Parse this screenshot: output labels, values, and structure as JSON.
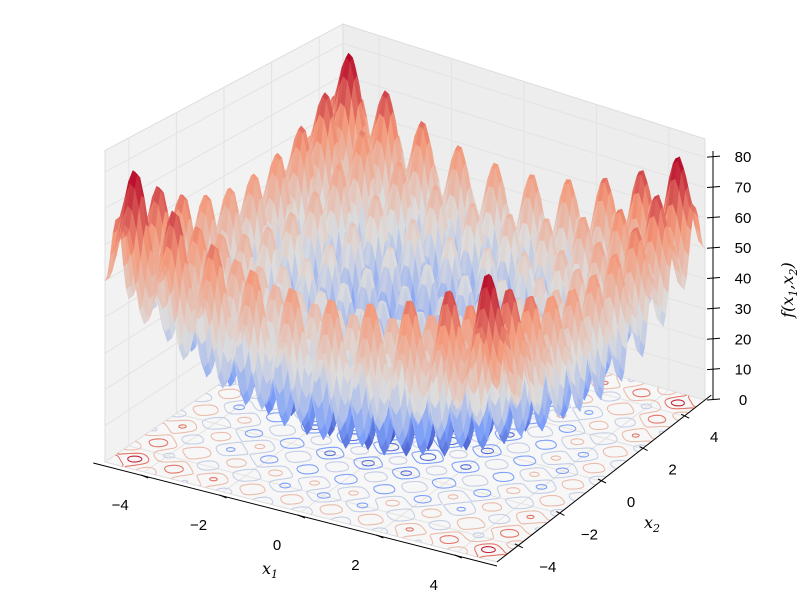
{
  "chart_data": {
    "type": "surface3d",
    "title": "",
    "function": "Rastrigin: f = 20 + x1^2 - 10cos(2*pi*x1) + x2^2 - 10cos(2*pi*x2)",
    "xlabel": "x1",
    "ylabel": "x2",
    "zlabel": "f(x1,x2)",
    "xlim": [
      -5.12,
      5.12
    ],
    "ylim": [
      -5.12,
      5.12
    ],
    "zlim": [
      0,
      80
    ],
    "xticks": [
      "−4",
      "−2",
      "0",
      "2",
      "4"
    ],
    "xtick_values": [
      -4,
      -2,
      0,
      2,
      4
    ],
    "yticks": [
      "−4",
      "−2",
      "0",
      "2",
      "4"
    ],
    "ytick_values": [
      -4,
      -2,
      0,
      2,
      4
    ],
    "zticks": [
      "0",
      "10",
      "20",
      "30",
      "40",
      "50",
      "60",
      "70",
      "80"
    ],
    "ztick_values": [
      0,
      10,
      20,
      30,
      40,
      50,
      60,
      70,
      80
    ],
    "colormap": "coolwarm",
    "contour_offset": 0,
    "contour_levels": [
      8,
      20,
      35,
      50,
      65,
      76
    ],
    "colors": {
      "low": "#3b4cc0",
      "mid": "#dddddd",
      "high": "#b40426",
      "pane": "#f2f2f2",
      "grid": "#e3e3e3"
    }
  }
}
